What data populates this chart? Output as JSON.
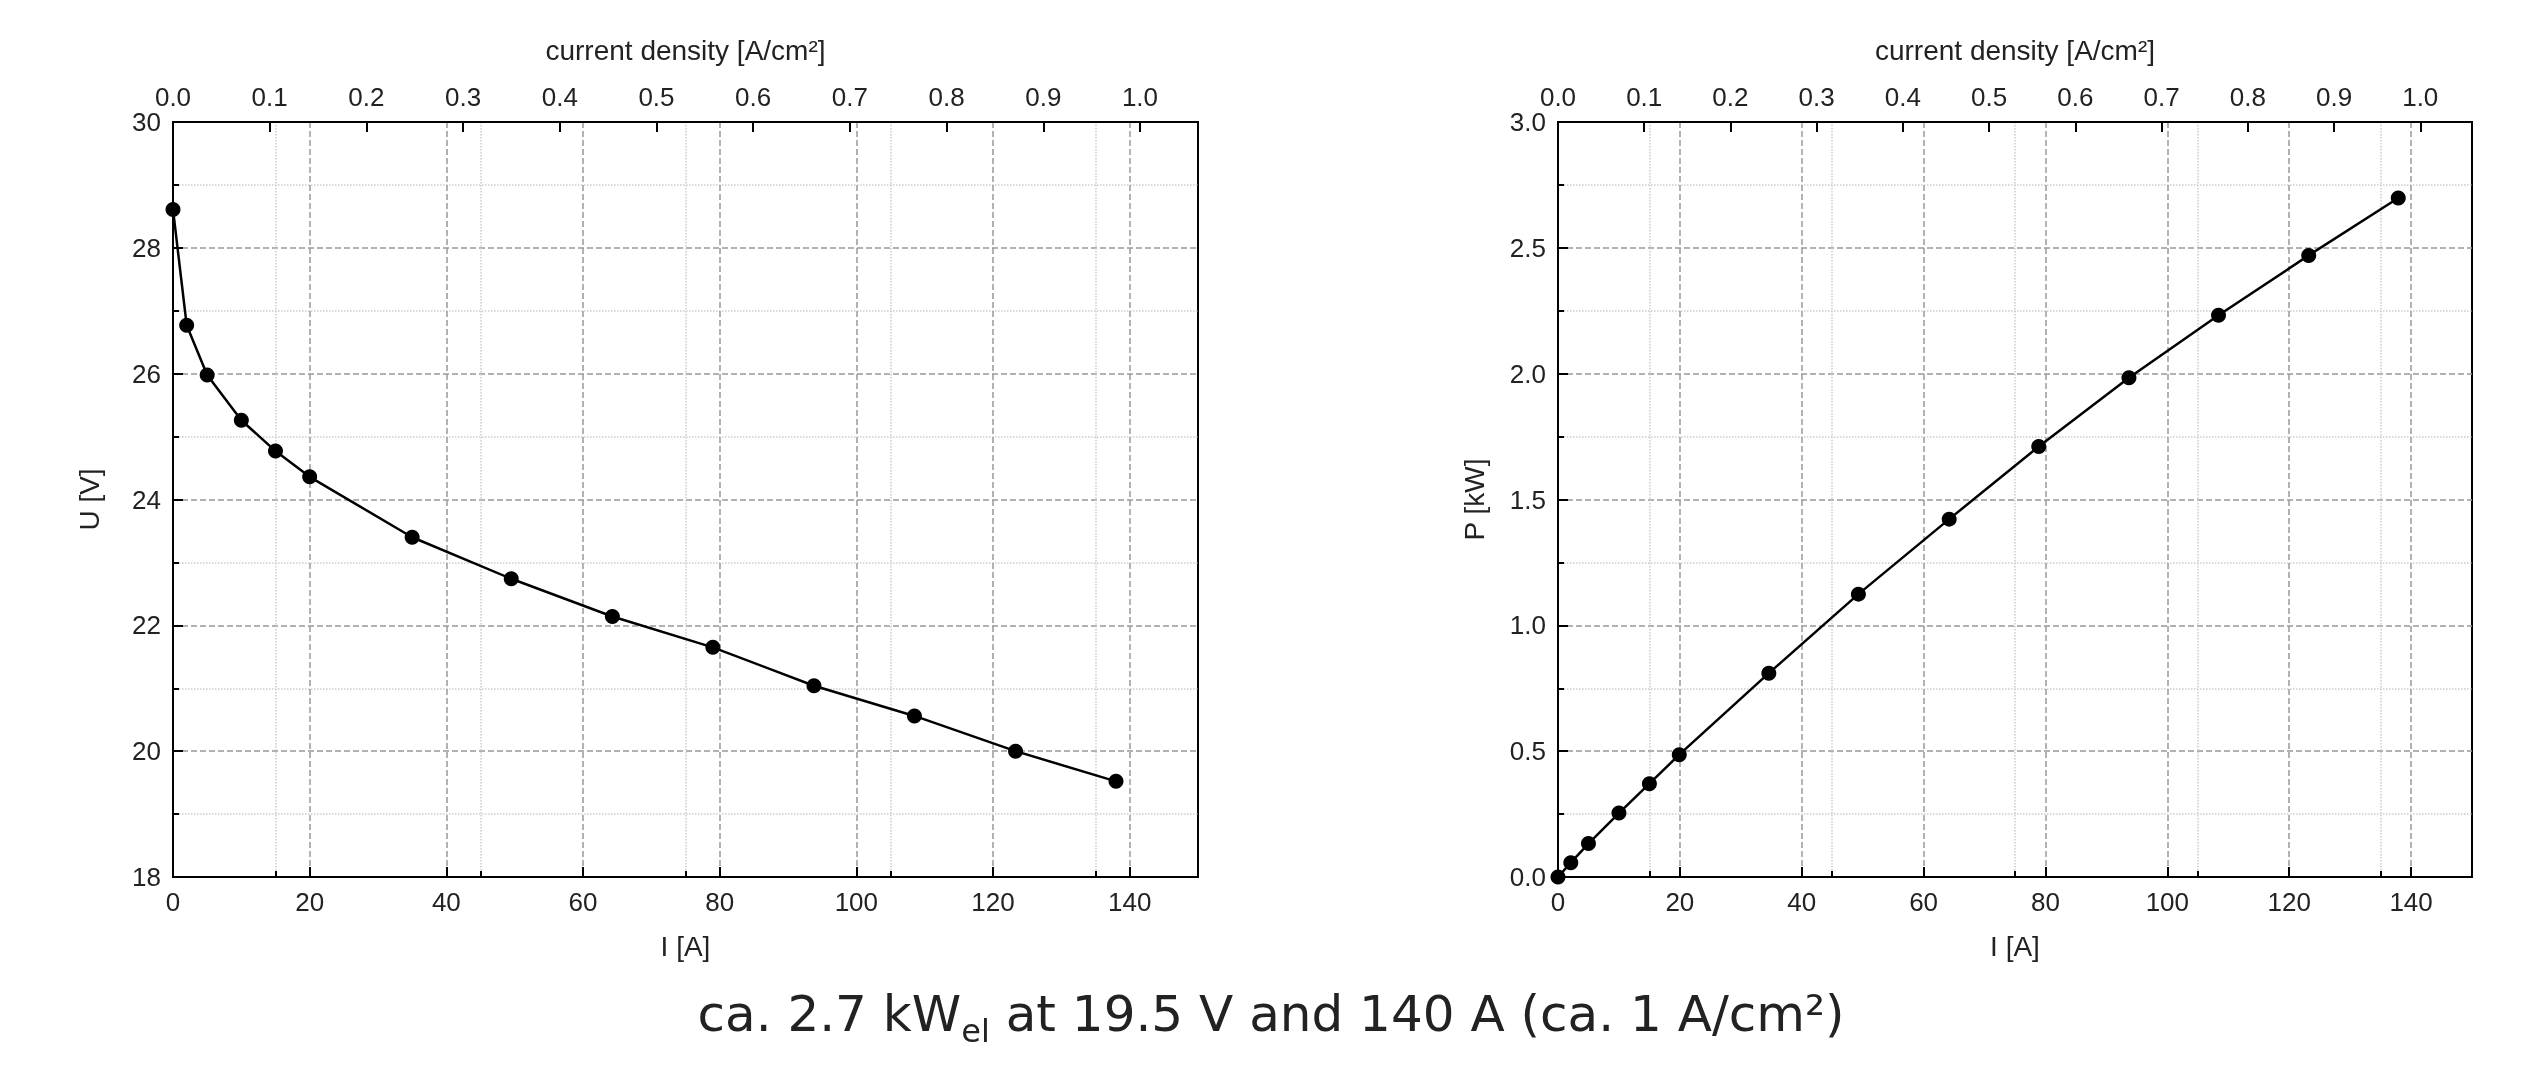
{
  "chart_data": [
    {
      "type": "line",
      "xlabel": "I [A]",
      "ylabel": "U [V]",
      "x2label": "current density [A/cm²]",
      "xlim": [
        0,
        150
      ],
      "xticks": [
        0,
        20,
        40,
        60,
        80,
        100,
        120,
        140
      ],
      "ylim": [
        18,
        30
      ],
      "yticks": [
        18,
        20,
        22,
        24,
        26,
        28,
        30
      ],
      "x2lim": [
        0,
        1.06
      ],
      "x2ticks": [
        {
          "value": 0,
          "label": "0.0"
        },
        {
          "value": 0.1,
          "label": "0.1"
        },
        {
          "value": 0.2,
          "label": "0.2"
        },
        {
          "value": 0.3,
          "label": "0.3"
        },
        {
          "value": 0.4,
          "label": "0.4"
        },
        {
          "value": 0.5,
          "label": "0.5"
        },
        {
          "value": 0.6,
          "label": "0.6"
        },
        {
          "value": 0.7,
          "label": "0.7"
        },
        {
          "value": 0.8,
          "label": "0.8"
        },
        {
          "value": 0.9,
          "label": "0.9"
        },
        {
          "value": 1,
          "label": "1.0"
        }
      ],
      "grid": true,
      "marker": "circle",
      "line_style": "solid",
      "annotations": [
        "ca. 2.7 kW$_{el}$ at 19.5 V and 140 A (ca. 1 A/cm²)"
      ],
      "series": [
        {
          "color": "#000000",
          "x": [
            0,
            2,
            5,
            10,
            15,
            20,
            35,
            49.5,
            64.3,
            79,
            93.8,
            108.5,
            123.3,
            138
          ],
          "values": [
            28.61,
            26.77,
            25.98,
            25.26,
            24.77,
            24.36,
            23.4,
            22.74,
            22.14,
            21.65,
            21.04,
            20.56,
            20.0,
            19.52
          ]
        }
      ]
    },
    {
      "type": "line",
      "xlabel": "I [A]",
      "ylabel": "P [kW]",
      "x2label": "current density [A/cm²]",
      "xlim": [
        0,
        150
      ],
      "xticks": [
        0,
        20,
        40,
        60,
        80,
        100,
        120,
        140
      ],
      "ylim": [
        0,
        3
      ],
      "yticks": [
        {
          "value": 0,
          "label": "0.0"
        },
        {
          "value": 0.5,
          "label": "0.5"
        },
        {
          "value": 1,
          "label": "1.0"
        },
        {
          "value": 1.5,
          "label": "1.5"
        },
        {
          "value": 2,
          "label": "2.0"
        },
        {
          "value": 2.5,
          "label": "2.5"
        },
        {
          "value": 3,
          "label": "3.0"
        }
      ],
      "x2lim": [
        0,
        1.06
      ],
      "x2ticks": [
        {
          "value": 0,
          "label": "0.0"
        },
        {
          "value": 0.1,
          "label": "0.1"
        },
        {
          "value": 0.2,
          "label": "0.2"
        },
        {
          "value": 0.3,
          "label": "0.3"
        },
        {
          "value": 0.4,
          "label": "0.4"
        },
        {
          "value": 0.5,
          "label": "0.5"
        },
        {
          "value": 0.6,
          "label": "0.6"
        },
        {
          "value": 0.7,
          "label": "0.7"
        },
        {
          "value": 0.8,
          "label": "0.8"
        },
        {
          "value": 0.9,
          "label": "0.9"
        },
        {
          "value": 1,
          "label": "1.0"
        }
      ],
      "grid": true,
      "marker": "circle",
      "line_style": "solid",
      "series": [
        {
          "color": "#000000",
          "x": [
            0,
            2.1,
            5,
            10,
            15,
            19.9,
            34.6,
            49.3,
            64.2,
            78.9,
            93.7,
            108.4,
            123.2,
            137.9
          ],
          "values": [
            0,
            0.057,
            0.133,
            0.254,
            0.371,
            0.486,
            0.81,
            1.124,
            1.422,
            1.711,
            1.984,
            2.232,
            2.47,
            2.698
          ]
        }
      ]
    }
  ]
}
